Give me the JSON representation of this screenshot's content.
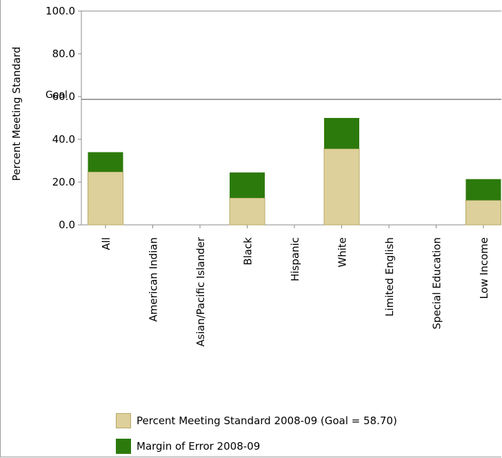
{
  "chart_data": {
    "type": "bar",
    "stacked": true,
    "ylabel": "Percent Meeting Standard",
    "ylim": [
      0,
      100
    ],
    "yticks": [
      "0.0",
      "20.0",
      "40.0",
      "60.0",
      "80.0",
      "100.0"
    ],
    "goal": {
      "label": "Goal",
      "value": 58.7
    },
    "categories": [
      "All",
      "American Indian",
      "Asian/Pacific Islander",
      "Black",
      "Hispanic",
      "White",
      "Limited English",
      "Special Education",
      "Low Income"
    ],
    "series": [
      {
        "name": "Percent Meeting Standard 2008-09 (Goal = 58.70)",
        "color": "#ddd09a",
        "values": [
          24.8,
          null,
          null,
          12.6,
          null,
          35.6,
          null,
          null,
          11.5
        ]
      },
      {
        "name": "Margin of Error 2008-09",
        "color": "#2d7a0c",
        "values": [
          9.2,
          null,
          null,
          11.9,
          null,
          14.4,
          null,
          null,
          9.9
        ]
      }
    ],
    "grid": false,
    "legend_position": "bottom"
  }
}
